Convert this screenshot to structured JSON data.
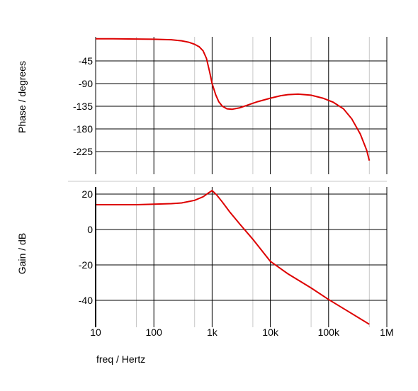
{
  "chart_data": [
    {
      "type": "line",
      "panel": "phase",
      "ylabel": "Phase / degrees",
      "ylim": [
        -255,
        0
      ],
      "xlim": [
        10,
        1000000
      ],
      "xscale": "log",
      "yticks": [
        -45,
        -90,
        -135,
        -180,
        -225
      ],
      "grid": true,
      "series": [
        {
          "color": "#dd0000",
          "points": [
            [
              10,
              -1
            ],
            [
              20,
              -1
            ],
            [
              50,
              -1.5
            ],
            [
              100,
              -2
            ],
            [
              200,
              -3
            ],
            [
              300,
              -5
            ],
            [
              400,
              -8
            ],
            [
              500,
              -12
            ],
            [
              600,
              -17
            ],
            [
              700,
              -25
            ],
            [
              800,
              -40
            ],
            [
              900,
              -65
            ],
            [
              1000,
              -90
            ],
            [
              1150,
              -112
            ],
            [
              1300,
              -126
            ],
            [
              1500,
              -135
            ],
            [
              1800,
              -140
            ],
            [
              2200,
              -141
            ],
            [
              3000,
              -138
            ],
            [
              4000,
              -133
            ],
            [
              6000,
              -126
            ],
            [
              10000,
              -119
            ],
            [
              15000,
              -114
            ],
            [
              20000,
              -112
            ],
            [
              30000,
              -111
            ],
            [
              50000,
              -113
            ],
            [
              80000,
              -119
            ],
            [
              120000,
              -127
            ],
            [
              180000,
              -140
            ],
            [
              250000,
              -160
            ],
            [
              350000,
              -190
            ],
            [
              450000,
              -222
            ],
            [
              500000,
              -243
            ]
          ]
        }
      ]
    },
    {
      "type": "line",
      "panel": "gain",
      "ylabel": "Gain / dB",
      "xlabel": "freq / Hertz",
      "ylim": [
        -54,
        22
      ],
      "xlim": [
        10,
        1000000
      ],
      "xscale": "log",
      "yticks": [
        20,
        0,
        -20,
        -40
      ],
      "xticks": [
        "10",
        "100",
        "1k",
        "10k",
        "100k",
        "1M"
      ],
      "grid": true,
      "series": [
        {
          "color": "#dd0000",
          "points": [
            [
              10,
              14
            ],
            [
              20,
              14
            ],
            [
              50,
              14
            ],
            [
              100,
              14.3
            ],
            [
              200,
              14.6
            ],
            [
              300,
              15
            ],
            [
              500,
              16.5
            ],
            [
              700,
              18.5
            ],
            [
              850,
              20.5
            ],
            [
              1000,
              22
            ],
            [
              1200,
              19.5
            ],
            [
              1500,
              15.5
            ],
            [
              2000,
              10
            ],
            [
              3000,
              3
            ],
            [
              5000,
              -5.5
            ],
            [
              10000,
              -18
            ],
            [
              20000,
              -25
            ],
            [
              50000,
              -33
            ],
            [
              100000,
              -39.5
            ],
            [
              200000,
              -45.5
            ],
            [
              500000,
              -53.5
            ]
          ]
        }
      ]
    }
  ]
}
